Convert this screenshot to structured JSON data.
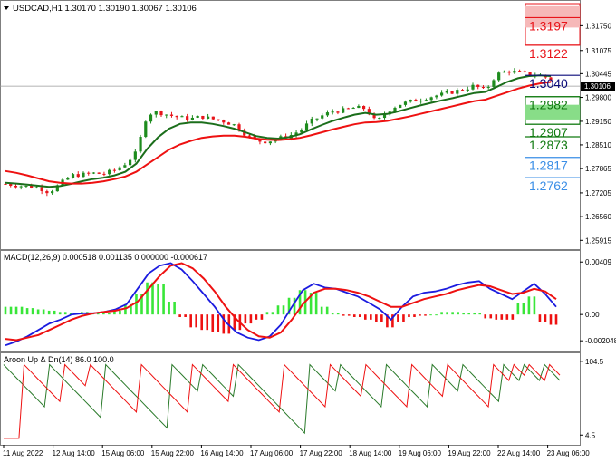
{
  "header": {
    "symbol_line": "USDCAD,H1  1.30170 1.30190 1.30067 1.30106"
  },
  "colors": {
    "up_candle": "#1e8c1e",
    "down_candle": "#e8151b",
    "ma_fast": "#1b6e1b",
    "ma_slow": "#ee1111",
    "macd_line": "#1b1bdf",
    "signal_line": "#ee1111",
    "hist_up": "#39e639",
    "hist_down": "#ee1111",
    "aroon_up": "#2a7a2a",
    "aroon_down": "#ee1111",
    "pane_border": "#7f7f7f",
    "price_tag_bg": "#000000",
    "price_tag_fg": "#ffffff",
    "bid_line": "#9a9a9a"
  },
  "chart_data": [
    {
      "type": "candlestick",
      "title": "USDCAD,H1",
      "ohlc_last": {
        "open": 1.3017,
        "high": 1.3019,
        "low": 1.30067,
        "close": 1.30106
      },
      "current_price": "1.30106",
      "y_ticks": [
        "1.31750",
        "1.31075",
        "1.30445",
        "1.29800",
        "1.29150",
        "1.28510",
        "1.27865",
        "1.27205",
        "1.26560",
        "1.25915"
      ],
      "ylim": [
        1.2575,
        1.3235
      ],
      "x_ticks": [
        "11 Aug 2022",
        "12 Aug 14:00",
        "15 Aug 06:00",
        "15 Aug 22:00",
        "16 Aug 14:00",
        "17 Aug 06:00",
        "17 Aug 22:00",
        "18 Aug 14:00",
        "19 Aug 06:00",
        "19 Aug 22:00",
        "22 Aug 14:00",
        "23 Aug 06:00"
      ],
      "close_path": [
        1.2745,
        1.2741,
        1.2738,
        1.2735,
        1.2722,
        1.2745,
        1.2768,
        1.277,
        1.2774,
        1.2772,
        1.2782,
        1.28,
        1.283,
        1.2935,
        1.294,
        1.2932,
        1.2925,
        1.2922,
        1.2928,
        1.2921,
        1.2915,
        1.2905,
        1.288,
        1.2862,
        1.286,
        1.2868,
        1.2875,
        1.289,
        1.2915,
        1.293,
        1.2942,
        1.2945,
        1.2952,
        1.295,
        1.2912,
        1.2942,
        1.296,
        1.2968,
        1.2975,
        1.2982,
        1.2988,
        1.2995,
        1.3002,
        1.3012,
        1.2998,
        1.3042,
        1.3052,
        1.3048,
        1.3042,
        1.304,
        1.303
      ],
      "series": [
        {
          "name": "MA fast",
          "color_key": "ma_fast",
          "values": [
            1.2748,
            1.2746,
            1.2743,
            1.274,
            1.2737,
            1.2739,
            1.2745,
            1.2752,
            1.2758,
            1.2762,
            1.2768,
            1.2778,
            1.28,
            1.284,
            1.2872,
            1.2895,
            1.2908,
            1.2912,
            1.2912,
            1.2908,
            1.2902,
            1.2895,
            1.2885,
            1.2875,
            1.287,
            1.2868,
            1.2872,
            1.288,
            1.2893,
            1.2905,
            1.2916,
            1.2925,
            1.2933,
            1.2938,
            1.2933,
            1.2935,
            1.2942,
            1.295,
            1.2958,
            1.2965,
            1.2972,
            1.2978,
            1.2985,
            1.2992,
            1.2995,
            1.3008,
            1.3022,
            1.3032,
            1.3038,
            1.304,
            1.3038
          ]
        },
        {
          "name": "MA slow",
          "color_key": "ma_slow",
          "values": [
            1.278,
            1.2775,
            1.2768,
            1.276,
            1.2752,
            1.2748,
            1.2746,
            1.2746,
            1.2748,
            1.2752,
            1.2758,
            1.2765,
            1.2778,
            1.2798,
            1.2818,
            1.2838,
            1.2852,
            1.2862,
            1.287,
            1.2874,
            1.2876,
            1.2876,
            1.2873,
            1.2868,
            1.2865,
            1.2864,
            1.2866,
            1.287,
            1.2877,
            1.2885,
            1.2893,
            1.29,
            1.2907,
            1.2912,
            1.2913,
            1.2916,
            1.2922,
            1.2928,
            1.2935,
            1.2942,
            1.2949,
            1.2956,
            1.2963,
            1.297,
            1.2974,
            1.2984,
            1.2994,
            1.3004,
            1.3012,
            1.3018,
            1.3022
          ]
        }
      ],
      "horizontal_levels": [
        {
          "price": 1.3197,
          "label": "1.3197",
          "zone": "red"
        },
        {
          "price": 1.3122,
          "label": "1.3122",
          "zone": "red"
        },
        {
          "price": 1.304,
          "label": "1.3040",
          "zone": "navy"
        },
        {
          "price": 1.2982,
          "label": "1.2982",
          "zone": "green"
        },
        {
          "price": 1.2907,
          "label": "1.2907",
          "zone": "green"
        },
        {
          "price": 1.2873,
          "label": "1.2873",
          "zone": "green"
        },
        {
          "price": 1.2817,
          "label": "1.2817",
          "zone": "blue"
        },
        {
          "price": 1.2762,
          "label": "1.2762",
          "zone": "blue"
        }
      ]
    },
    {
      "type": "line",
      "title": "MACD(12,26,9) 0.000518 0.001135 0.000000 -0.000617",
      "y_ticks": [
        "0.00409",
        "0.00",
        "-0.002048"
      ],
      "ylim": [
        -0.0026,
        0.0046
      ],
      "series": [
        {
          "name": "MACD",
          "color_key": "macd_line",
          "values": [
            -0.0024,
            -0.0021,
            -0.0017,
            -0.0012,
            -0.0007,
            -0.0004,
            0.0,
            0.0001,
            0.0001,
            0.0002,
            0.0004,
            0.0008,
            0.002,
            0.0032,
            0.0038,
            0.004,
            0.0035,
            0.0026,
            0.0016,
            0.0006,
            -0.0006,
            -0.0014,
            -0.0018,
            -0.002,
            -0.0017,
            -0.0008,
            0.0006,
            0.0019,
            0.0024,
            0.0021,
            0.002,
            0.0017,
            0.0014,
            0.0009,
            0.0004,
            -0.0004,
            0.0006,
            0.0014,
            0.0017,
            0.0018,
            0.002,
            0.0023,
            0.0025,
            0.0026,
            0.002,
            0.0016,
            0.0012,
            0.0018,
            0.0024,
            0.0016,
            0.0006
          ]
        },
        {
          "name": "Signal",
          "color_key": "signal_line",
          "values": [
            -0.0019,
            -0.002,
            -0.0018,
            -0.0016,
            -0.0012,
            -0.0008,
            -0.0004,
            -0.0001,
            0.0001,
            0.0002,
            0.0003,
            0.0005,
            0.001,
            0.002,
            0.003,
            0.0038,
            0.004,
            0.0036,
            0.0028,
            0.0018,
            0.0006,
            -0.0004,
            -0.0012,
            -0.0017,
            -0.0018,
            -0.0014,
            -0.0004,
            0.0008,
            0.0017,
            0.002,
            0.002,
            0.0019,
            0.0017,
            0.0014,
            0.001,
            0.0006,
            0.0006,
            0.0009,
            0.0012,
            0.0014,
            0.0016,
            0.0019,
            0.0021,
            0.0023,
            0.0022,
            0.0019,
            0.0016,
            0.0017,
            0.002,
            0.0018,
            0.0012
          ]
        }
      ],
      "histogram": [
        0.0006,
        0.0006,
        0.0005,
        0.0004,
        0.0003,
        0.0002,
        0.0001,
        0.0002,
        0.0001,
        0.0001,
        0.0003,
        0.0008,
        0.0016,
        0.0025,
        0.0024,
        0.001,
        -0.0002,
        -0.001,
        -0.0012,
        -0.0014,
        -0.0015,
        -0.0012,
        -0.0007,
        -0.0004,
        0.0002,
        0.0007,
        0.0013,
        0.0019,
        0.0017,
        0.0006,
        0.0001,
        -0.0001,
        -0.0002,
        -0.0004,
        -0.0006,
        -0.001,
        -0.0006,
        -0.0002,
        -0.0001,
        0.0,
        0.0002,
        0.0002,
        0.0001,
        0.0001,
        -0.0003,
        -0.0004,
        -0.0004,
        0.0009,
        0.0014,
        -0.0006,
        -0.0008
      ]
    },
    {
      "type": "line",
      "title": "Aroon Up & Dn(14) 86.0 100.0",
      "y_ticks": [
        "104.5",
        "4.5"
      ],
      "ylim": [
        -5,
        108
      ],
      "series": [
        {
          "name": "Aroon Up",
          "color_key": "aroon_up",
          "period_bars": 14,
          "reset_bars": [
            0,
            9,
            20,
            33,
            39,
            46,
            60,
            66,
            75,
            84,
            90,
            98,
            102,
            106
          ]
        },
        {
          "name": "Aroon Dn",
          "color_key": "aroon_down",
          "period_bars": 14,
          "reset_bars": [
            4,
            12,
            17,
            27,
            37,
            45,
            55,
            64,
            71,
            80,
            87,
            96,
            100,
            103,
            107
          ]
        }
      ]
    }
  ]
}
